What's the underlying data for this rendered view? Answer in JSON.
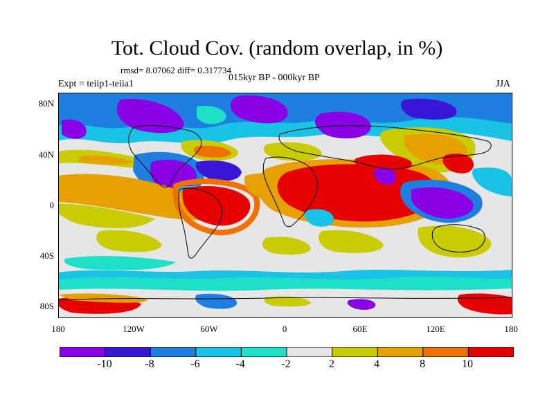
{
  "title": "Tot. Cloud Cov. (random overlap, in %)",
  "stats": "rmsd= 8.07062 diff= 0.317734",
  "experiment": "Expt = teiip1-teiia1",
  "period": "015kyr BP - 000kyr BP",
  "season": "JJA",
  "y_ticks": [
    "80N",
    "40N",
    "0",
    "40S",
    "80S"
  ],
  "x_ticks": [
    "180",
    "120W",
    "60W",
    "0",
    "60E",
    "120E",
    "180"
  ],
  "colorbar": {
    "colors": [
      "#8a00e6",
      "#3a17d8",
      "#1f7fe0",
      "#19c3e6",
      "#1ee0c8",
      "#e6e6e6",
      "#c8cc00",
      "#e6a000",
      "#f07000",
      "#e60000"
    ],
    "labels": [
      "-10",
      "-8",
      "-6",
      "-4",
      "-2",
      "2",
      "4",
      "8",
      "10"
    ]
  }
}
